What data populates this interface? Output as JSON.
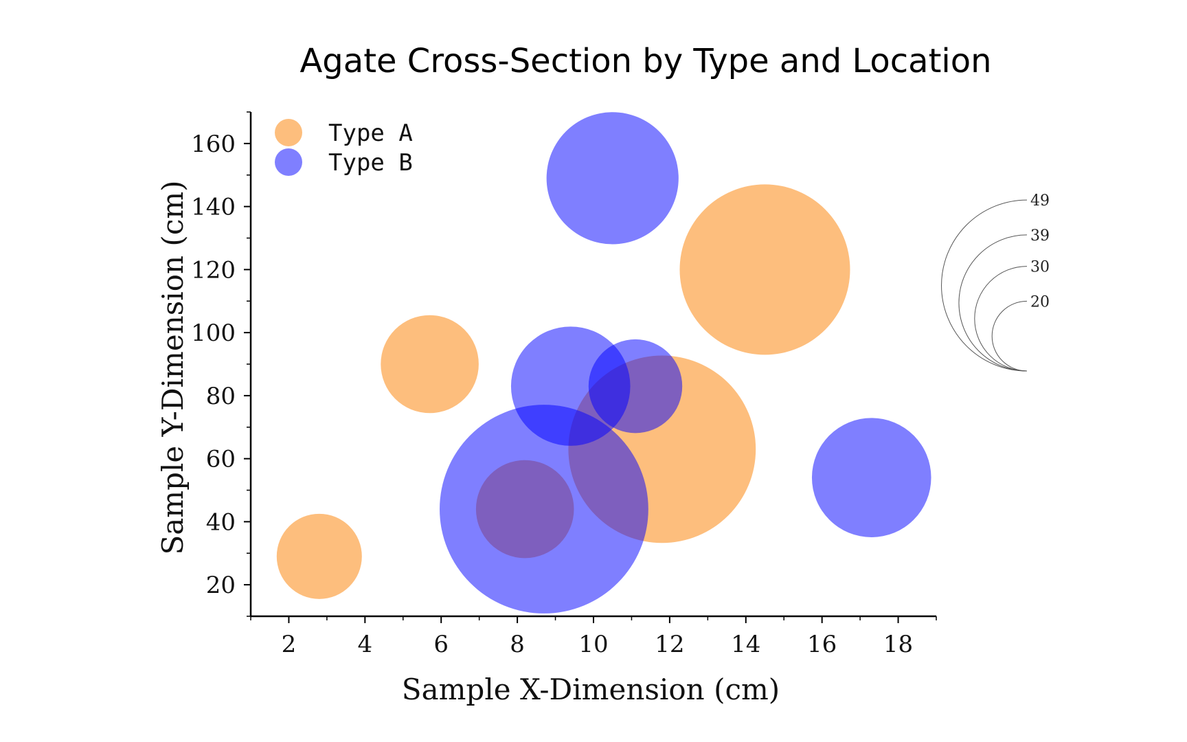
{
  "chart_data": {
    "type": "scatter",
    "title": "Agate Cross-Section by Type and Location",
    "xlabel": "Sample X-Dimension (cm)",
    "ylabel": "Sample Y-Dimension (cm)",
    "xlim": [
      1,
      19
    ],
    "ylim": [
      10,
      170
    ],
    "xticks": [
      2,
      4,
      6,
      8,
      10,
      12,
      14,
      16,
      18
    ],
    "yticks": [
      20,
      40,
      60,
      80,
      100,
      120,
      140,
      160
    ],
    "series": [
      {
        "name": "Type A",
        "color": "#fdb366",
        "points": [
          {
            "x": 2.8,
            "y": 29,
            "size": 20
          },
          {
            "x": 5.7,
            "y": 90,
            "size": 23
          },
          {
            "x": 8.2,
            "y": 44,
            "size": 23
          },
          {
            "x": 11.8,
            "y": 63,
            "size": 44
          },
          {
            "x": 14.5,
            "y": 120,
            "size": 40
          }
        ]
      },
      {
        "name": "Type B",
        "color": "#0000ff",
        "points": [
          {
            "x": 8.7,
            "y": 44,
            "size": 49
          },
          {
            "x": 9.4,
            "y": 83,
            "size": 28
          },
          {
            "x": 10.5,
            "y": 149,
            "size": 31
          },
          {
            "x": 11.1,
            "y": 83,
            "size": 22
          },
          {
            "x": 17.3,
            "y": 54,
            "size": 28
          }
        ]
      }
    ],
    "size_legend": {
      "values": [
        20,
        30,
        39,
        49
      ]
    },
    "legend": {
      "position": "top-left",
      "entries": [
        "Type A",
        "Type B"
      ]
    }
  }
}
